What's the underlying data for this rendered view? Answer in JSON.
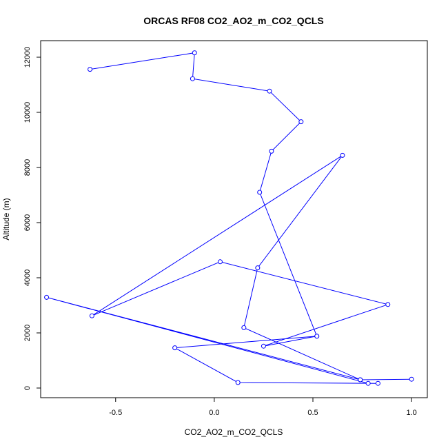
{
  "chart_data": {
    "type": "line",
    "title": "ORCAS RF08 CO2_AO2_m_CO2_QCLS",
    "xlabel": "CO2_AO2_m_CO2_QCLS",
    "ylabel": "Altitude (m)",
    "xlim": [
      -0.88,
      1.08
    ],
    "ylim": [
      -350,
      12600
    ],
    "xticks": [
      -0.5,
      0.0,
      0.5,
      1.0
    ],
    "xtick_labels": [
      "-0.5",
      "0.0",
      "0.5",
      "1.0"
    ],
    "yticks": [
      0,
      2000,
      4000,
      6000,
      8000,
      10000,
      12000
    ],
    "ytick_labels": [
      "0",
      "2000",
      "4000",
      "6000",
      "8000",
      "10000",
      "12000"
    ],
    "grid": false,
    "series": [
      {
        "color": "#0000ff",
        "marker": "open-circle",
        "x": [
          -0.63,
          -0.1,
          -0.11,
          0.28,
          0.44,
          0.29,
          0.23,
          0.52,
          0.25,
          0.88,
          0.03,
          -0.62,
          0.65,
          0.22,
          0.15,
          0.74,
          1.0,
          0.74,
          -0.85,
          0.78,
          0.83,
          0.12,
          -0.2,
          0.52
        ],
        "y": [
          11560,
          12160,
          11220,
          10770,
          9660,
          8590,
          7100,
          1880,
          1520,
          3030,
          4580,
          2620,
          8440,
          4360,
          2190,
          300,
          320,
          300,
          3290,
          170,
          170,
          200,
          1460,
          1880
        ]
      }
    ]
  }
}
